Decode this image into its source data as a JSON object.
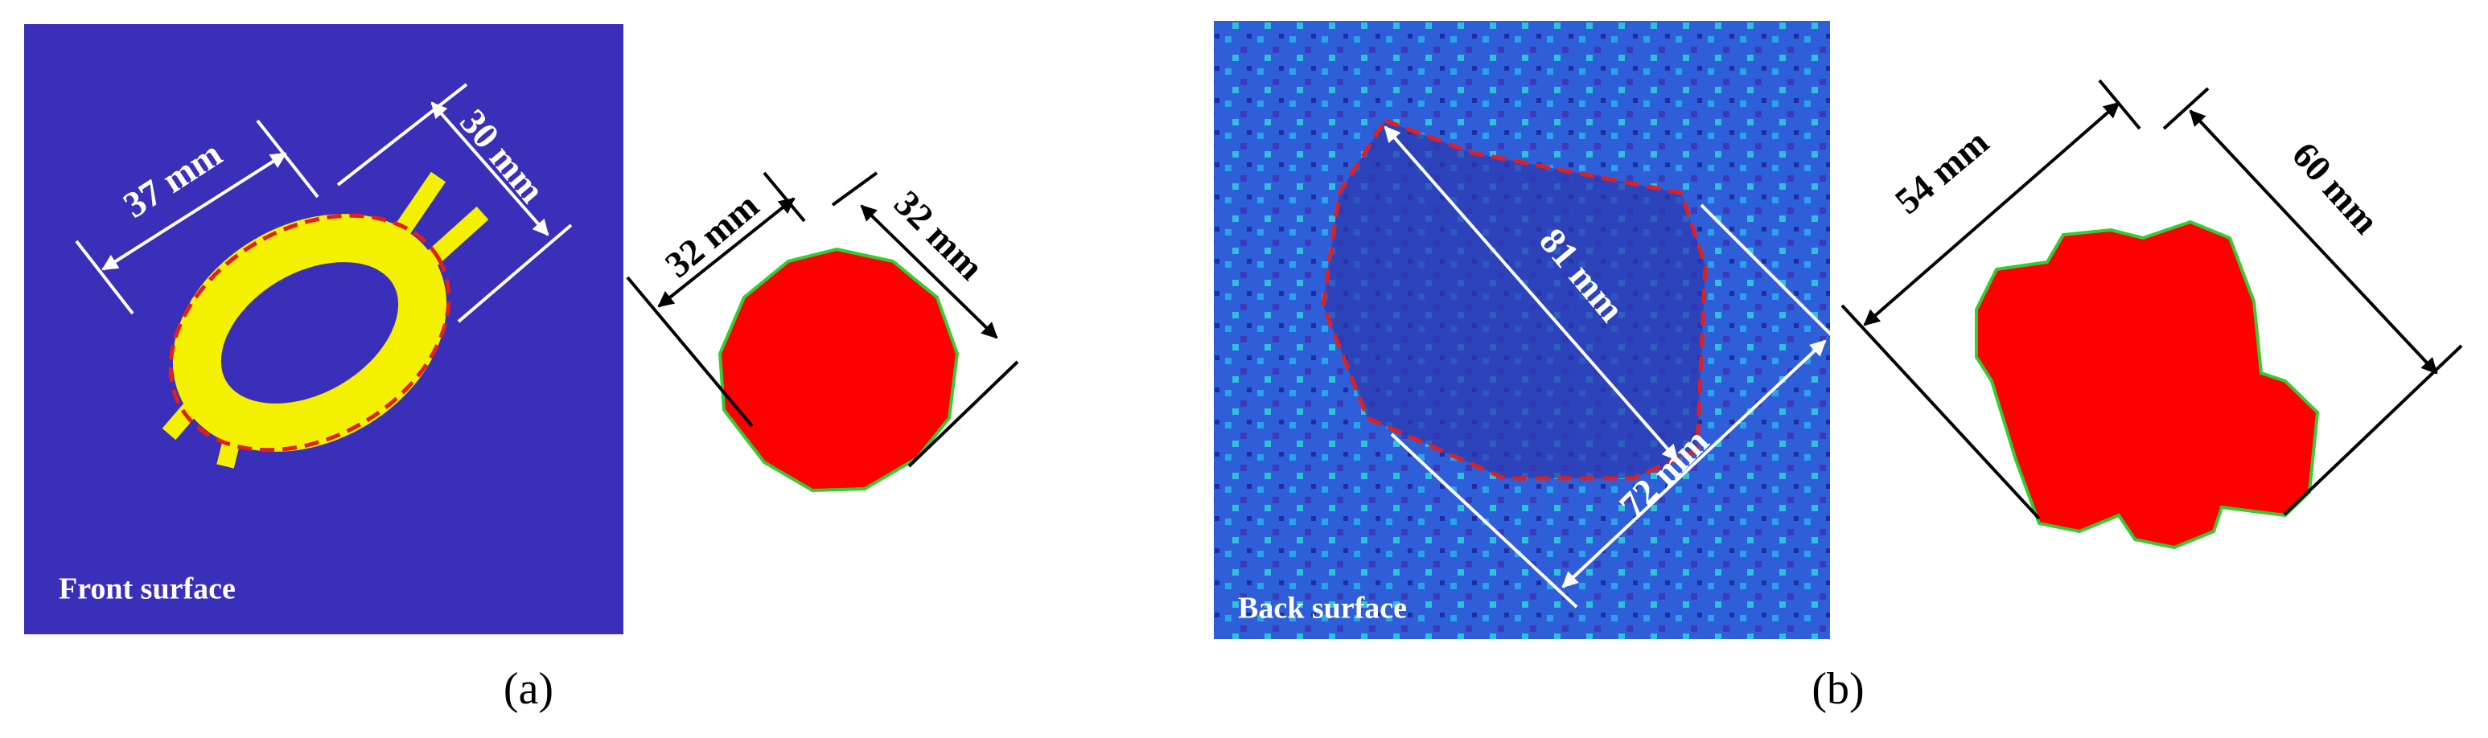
{
  "panels": [
    {
      "label": "(a)",
      "surface_label": "Front surface",
      "image_dimensions": [
        "37 mm",
        "30 mm"
      ],
      "shape_dimensions": [
        "32 mm",
        "32 mm"
      ]
    },
    {
      "label": "(b)",
      "surface_label": "Back surface",
      "image_dimensions": [
        "81 mm",
        "72 mm"
      ],
      "shape_dimensions": [
        "54 mm",
        "60 mm"
      ]
    }
  ]
}
